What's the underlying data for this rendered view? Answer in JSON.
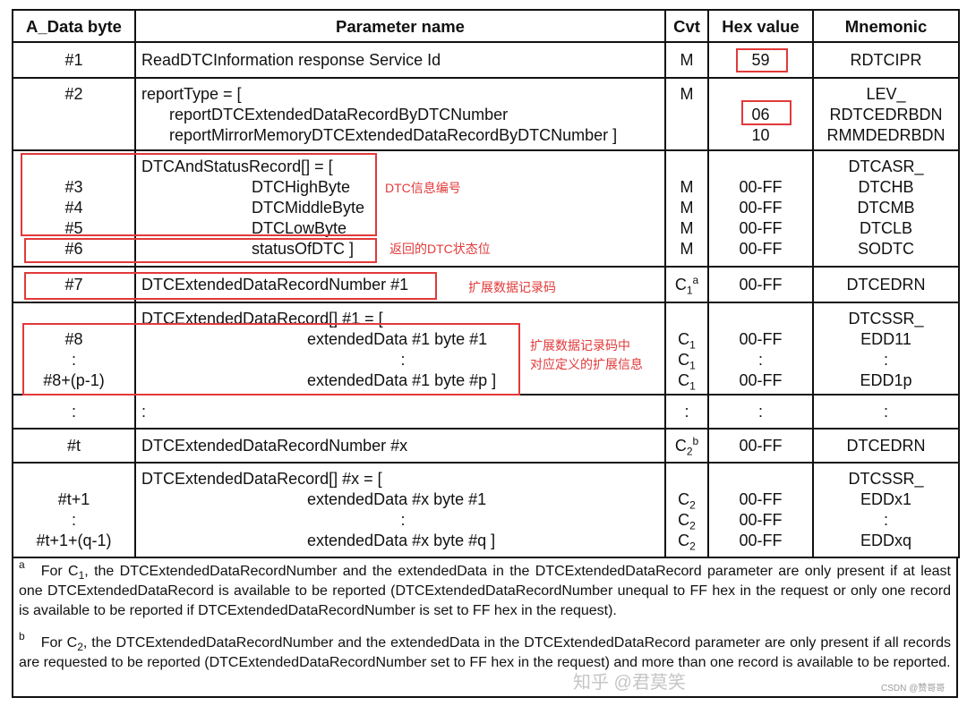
{
  "table": {
    "headers": [
      "A_Data byte",
      "Parameter name",
      "Cvt",
      "Hex value",
      "Mnemonic"
    ],
    "rows": [
      {
        "byte": [
          "#1"
        ],
        "param": [
          "ReadDTCInformation response Service Id"
        ],
        "cvt": [
          {
            "t": "M"
          }
        ],
        "hex": [
          "59"
        ],
        "mnemonic": [
          "RDTCIPR"
        ]
      },
      {
        "byte": [
          "#2"
        ],
        "param": [
          "reportType = [",
          "reportDTCExtendedDataRecordByDTCNumber",
          "reportMirrorMemoryDTCExtendedDataRecordByDTCNumber ]"
        ],
        "cvt": [
          {
            "t": "M"
          }
        ],
        "hex": [
          "",
          "06",
          "10"
        ],
        "mnemonic": [
          "LEV_",
          "RDTCEDRBDN",
          "RMMDEDRBDN"
        ]
      },
      {
        "byte": [
          "",
          "#3",
          "#4",
          "#5",
          "#6"
        ],
        "param": [
          "DTCAndStatusRecord[] = [",
          "DTCHighByte",
          "DTCMiddleByte",
          "DTCLowByte",
          "statusOfDTC ]"
        ],
        "cvt": [
          {
            "t": ""
          },
          {
            "t": "M"
          },
          {
            "t": "M"
          },
          {
            "t": "M"
          },
          {
            "t": "M"
          }
        ],
        "hex": [
          "",
          "00-FF",
          "00-FF",
          "00-FF",
          "00-FF"
        ],
        "mnemonic": [
          "DTCASR_",
          "DTCHB",
          "DTCMB",
          "DTCLB",
          "SODTC"
        ]
      },
      {
        "byte": [
          "#7"
        ],
        "param": [
          "DTCExtendedDataRecordNumber #1"
        ],
        "cvt": [
          {
            "t": "C",
            "sub": "1",
            "sup": "a"
          }
        ],
        "hex": [
          "00-FF"
        ],
        "mnemonic": [
          "DTCEDRN"
        ]
      },
      {
        "byte": [
          "",
          "#8",
          ":",
          "#8+(p-1)"
        ],
        "param": [
          "DTCExtendedDataRecord[] #1 = [",
          "extendedData #1 byte #1",
          ":",
          "extendedData #1 byte #p ]"
        ],
        "cvt": [
          {
            "t": ""
          },
          {
            "t": "C",
            "sub": "1"
          },
          {
            "t": "C",
            "sub": "1"
          },
          {
            "t": "C",
            "sub": "1"
          }
        ],
        "hex": [
          "",
          "00-FF",
          ":",
          "00-FF"
        ],
        "mnemonic": [
          "DTCSSR_",
          "EDD11",
          ":",
          "EDD1p"
        ]
      },
      {
        "byte": [
          ":"
        ],
        "param": [
          ":"
        ],
        "cvt": [
          {
            "t": ":"
          }
        ],
        "hex": [
          ":"
        ],
        "mnemonic": [
          ":"
        ]
      },
      {
        "byte": [
          "#t"
        ],
        "param": [
          "DTCExtendedDataRecordNumber #x"
        ],
        "cvt": [
          {
            "t": "C",
            "sub": "2",
            "sup": "b"
          }
        ],
        "hex": [
          "00-FF"
        ],
        "mnemonic": [
          "DTCEDRN"
        ]
      },
      {
        "byte": [
          "",
          "#t+1",
          ":",
          "#t+1+(q-1)"
        ],
        "param": [
          "DTCExtendedDataRecord[] #x = [",
          "extendedData #x byte #1",
          ":",
          "extendedData #x byte #q ]"
        ],
        "cvt": [
          {
            "t": ""
          },
          {
            "t": "C",
            "sub": "2"
          },
          {
            "t": "C",
            "sub": "2"
          },
          {
            "t": "C",
            "sub": "2"
          }
        ],
        "hex": [
          "",
          "00-FF",
          "00-FF",
          "00-FF"
        ],
        "mnemonic": [
          "DTCSSR_",
          "EDDx1",
          ":",
          "EDDxq"
        ]
      }
    ]
  },
  "footnotes": [
    {
      "mark": "a",
      "lead": "For C",
      "sub": "1",
      "text": ", the DTCExtendedDataRecordNumber and the extendedData in the DTCExtendedDataRecord parameter are only present if at least one DTCExtendedDataRecord is available to be reported (DTCExtendedDataRecordNumber unequal to FF hex in the request or only one record is available to be reported if DTCExtendedDataRecordNumber is set to FF hex in the request)."
    },
    {
      "mark": "b",
      "lead": "For C",
      "sub": "2",
      "text": ", the DTCExtendedDataRecordNumber and the extendedData in the DTCExtendedDataRecord parameter are only present if all records are requested to be reported (DTCExtendedDataRecordNumber set to FF hex in the request) and more than one record is available to be reported."
    }
  ],
  "annotations": {
    "dtc_info_number": "DTC信息编号",
    "dtc_status_bits": "返回的DTC状态位",
    "ext_record_number": "扩展数据记录码",
    "ext_info_line1": "扩展数据记录码中",
    "ext_info_line2": "对应定义的扩展信息"
  },
  "watermarks": {
    "zhihu": "知乎 @君莫笑",
    "csdn": "CSDN @赞哥哥"
  },
  "colors": {
    "annotation_red": "#e2393a",
    "border": "#111111"
  }
}
